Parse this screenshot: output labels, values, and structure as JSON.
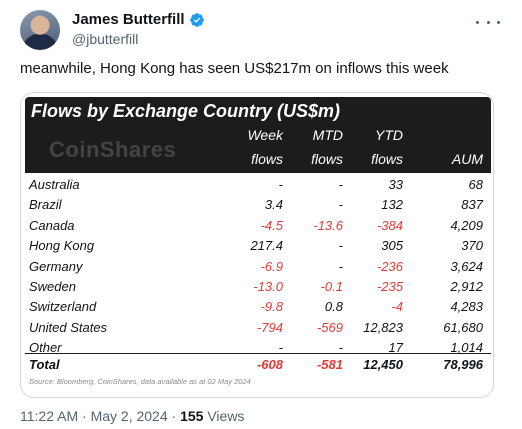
{
  "author": {
    "name": "James Butterfill",
    "handle": "@jbutterfill",
    "verified_color": "#1d9bf0"
  },
  "tweet": {
    "text": "meanwhile, Hong Kong has seen US$217m on inflows this week",
    "time": "11:22 AM",
    "date": "May 2, 2024",
    "views_count": "155",
    "views_label": "Views"
  },
  "table": {
    "title": "Flows by Exchange Country (US$m)",
    "brand": "CoinShares",
    "headers": {
      "week_1": "Week",
      "week_2": "flows",
      "mtd_1": "MTD",
      "mtd_2": "flows",
      "ytd_1": "YTD",
      "ytd_2": "flows",
      "aum": "AUM"
    },
    "rows": [
      {
        "country": "Australia",
        "week": "-",
        "mtd": "-",
        "ytd": "33",
        "aum": "68"
      },
      {
        "country": "Brazil",
        "week": "3.4",
        "mtd": "-",
        "ytd": "132",
        "aum": "837"
      },
      {
        "country": "Canada",
        "week": "-4.5",
        "mtd": "-13.6",
        "ytd": "-384",
        "aum": "4,209"
      },
      {
        "country": "Hong Kong",
        "week": "217.4",
        "mtd": "-",
        "ytd": "305",
        "aum": "370"
      },
      {
        "country": "Germany",
        "week": "-6.9",
        "mtd": "-",
        "ytd": "-236",
        "aum": "3,624"
      },
      {
        "country": "Sweden",
        "week": "-13.0",
        "mtd": "-0.1",
        "ytd": "-235",
        "aum": "2,912"
      },
      {
        "country": "Switzerland",
        "week": "-9.8",
        "mtd": "0.8",
        "ytd": "-4",
        "aum": "4,283"
      },
      {
        "country": "United States",
        "week": "-794",
        "mtd": "-569",
        "ytd": "12,823",
        "aum": "61,680"
      },
      {
        "country": "Other",
        "week": "-",
        "mtd": "-",
        "ytd": "17",
        "aum": "1,014"
      }
    ],
    "total": {
      "country": "Total",
      "week": "-608",
      "mtd": "-581",
      "ytd": "12,450",
      "aum": "78,996"
    },
    "source": "Source: Bloomberg, CoinShares, data available as at 02 May 2024"
  },
  "colors": {
    "negative": "#e53935",
    "banner": "#1c1c1c",
    "secondary_text": "#536471"
  }
}
